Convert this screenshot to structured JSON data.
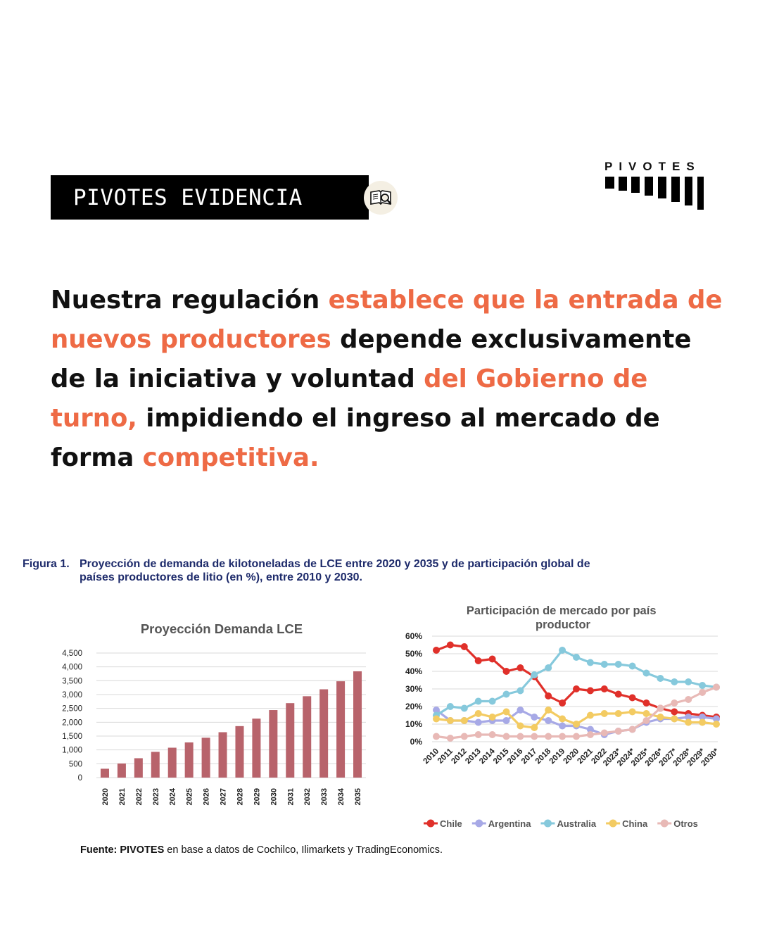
{
  "badge": {
    "label": "PIVOTES EVIDENCIA",
    "icon": "book-magnifier-icon"
  },
  "logo": {
    "wordmark": "PIVOTES"
  },
  "headline": {
    "parts": [
      {
        "text": "Nuestra regulación ",
        "highlight": false
      },
      {
        "text": "establece que la entrada de nuevos productores",
        "highlight": true
      },
      {
        "text": " depende exclusivamente de la iniciativa y voluntad ",
        "highlight": false
      },
      {
        "text": "del Gobierno de turno,",
        "highlight": true
      },
      {
        "text": " impidiendo el ingreso al mercado de forma ",
        "highlight": false
      },
      {
        "text": "competitiva.",
        "highlight": true
      }
    ],
    "highlight_color": "#ee6a45"
  },
  "figure": {
    "label": "Figura 1.",
    "caption_line1": "Proyección de demanda de kilotoneladas de LCE entre 2020 y 2035 y de participación global de",
    "caption_line2": "países productores de litio (en %), entre 2010 y 2030."
  },
  "chart_data": [
    {
      "type": "bar",
      "title": "Proyección Demanda LCE",
      "categories": [
        "2020",
        "2021",
        "2022",
        "2023",
        "2024",
        "2025",
        "2026",
        "2027",
        "2028",
        "2029",
        "2030",
        "2031",
        "2032",
        "2033",
        "2034",
        "2035"
      ],
      "values": [
        320,
        510,
        700,
        930,
        1080,
        1270,
        1440,
        1640,
        1860,
        2130,
        2440,
        2690,
        2940,
        3190,
        3480,
        3840
      ],
      "ylim": [
        0,
        4500
      ],
      "yticks": [
        0,
        500,
        1000,
        1500,
        2000,
        2500,
        3000,
        3500,
        4000,
        4500
      ],
      "ytick_labels": [
        "0",
        "500",
        "1,000",
        "1,500",
        "2,000",
        "2,500",
        "3,000",
        "3,500",
        "4,000",
        "4,500"
      ],
      "bar_color": "#b8636b",
      "grid": true
    },
    {
      "type": "line",
      "title": "Participación de mercado por país productor",
      "title_lines": [
        "Participación de mercado por país",
        "productor"
      ],
      "x": [
        "2010",
        "2011",
        "2012",
        "2013",
        "2014",
        "2015",
        "2016",
        "2017",
        "2018",
        "2019",
        "2020",
        "2021",
        "2022",
        "2023*",
        "2024*",
        "2025*",
        "2026*",
        "2027*",
        "2028*",
        "2029*",
        "2030*"
      ],
      "ylim": [
        0,
        60
      ],
      "yticks": [
        0,
        10,
        20,
        30,
        40,
        50,
        60
      ],
      "ytick_labels": [
        "0%",
        "10%",
        "20%",
        "30%",
        "40%",
        "50%",
        "60%"
      ],
      "grid": true,
      "legend_position": "bottom",
      "series": [
        {
          "name": "Chile",
          "color": "#e0302a",
          "values": [
            52,
            55,
            54,
            46,
            47,
            40,
            42,
            37,
            26,
            22,
            30,
            29,
            30,
            27,
            25,
            22,
            19,
            17,
            16,
            15,
            14
          ]
        },
        {
          "name": "Argentina",
          "color": "#a7a9e6",
          "values": [
            18,
            12,
            12,
            11,
            12,
            12,
            18,
            14,
            12,
            9,
            9,
            7,
            4,
            6,
            7,
            11,
            13,
            13,
            14,
            14,
            13
          ]
        },
        {
          "name": "Australia",
          "color": "#86c9dc",
          "values": [
            15,
            20,
            19,
            23,
            23,
            27,
            29,
            38,
            42,
            52,
            48,
            45,
            44,
            44,
            43,
            39,
            36,
            34,
            34,
            32,
            31
          ]
        },
        {
          "name": "China",
          "color": "#f3cb62",
          "values": [
            13,
            12,
            12,
            16,
            14,
            17,
            9,
            8,
            18,
            13,
            10,
            15,
            16,
            16,
            17,
            16,
            14,
            13,
            11,
            11,
            10
          ]
        },
        {
          "name": "Otros",
          "color": "#e8b9b6",
          "values": [
            3,
            2,
            3,
            4,
            4,
            3,
            3,
            3,
            3,
            3,
            3,
            4,
            5,
            6,
            7,
            12,
            19,
            22,
            24,
            28,
            31
          ]
        }
      ]
    }
  ],
  "source": {
    "label": "Fuente:",
    "org": "PIVOTES",
    "text": "en base a datos de Cochilco, Ilimarkets y TradingEconomics."
  }
}
